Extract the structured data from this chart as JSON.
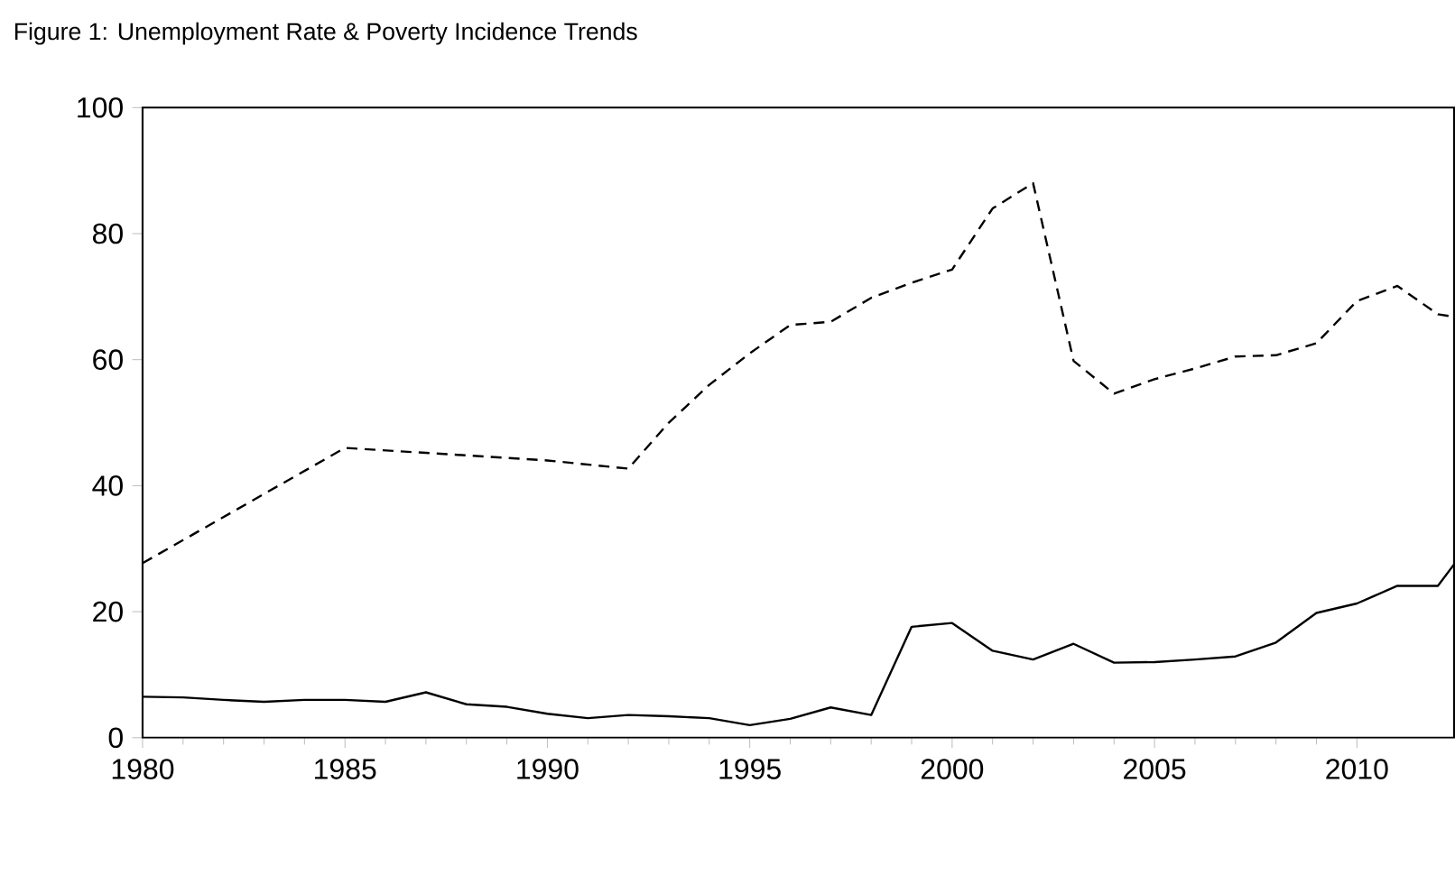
{
  "chart_data": {
    "type": "line",
    "title": "Figure 1: Unemployment Rate & Poverty Incidence Trends",
    "xlim": [
      1980,
      2012.4
    ],
    "ylim": [
      0,
      100
    ],
    "xticks": [
      1980,
      1985,
      1990,
      1995,
      2000,
      2005,
      2010
    ],
    "yticks": [
      0,
      20,
      40,
      60,
      80,
      100
    ],
    "series": [
      {
        "color": "#000000",
        "line_style": "solid",
        "x": [
          1980,
          1981,
          1982,
          1983,
          1984,
          1985,
          1986,
          1987,
          1988,
          1989,
          1990,
          1991,
          1992,
          1993,
          1994,
          1995,
          1996,
          1997,
          1998,
          1999,
          2000,
          2001,
          2002,
          2003,
          2004,
          2005,
          2006,
          2007,
          2008,
          2009,
          2010,
          2011,
          2012,
          2012.4
        ],
        "values": [
          6.5,
          6.4,
          6.0,
          5.7,
          6.0,
          6.0,
          5.7,
          7.2,
          5.3,
          4.9,
          3.8,
          3.1,
          3.6,
          3.4,
          3.1,
          2.0,
          3.0,
          4.8,
          3.6,
          17.6,
          18.2,
          13.8,
          12.4,
          14.9,
          11.9,
          12.0,
          12.4,
          12.9,
          15.1,
          19.8,
          21.3,
          24.1,
          24.1,
          27.5
        ]
      },
      {
        "color": "#000000",
        "line_style": "dashed",
        "x": [
          1980,
          1985,
          1987,
          1990,
          1992,
          1993,
          1994,
          1995,
          1996,
          1997,
          1998,
          1999,
          2000,
          2001,
          2002,
          2003,
          2004,
          2005,
          2006,
          2007,
          2008,
          2009,
          2010,
          2011,
          2012,
          2012.4
        ],
        "values": [
          27.7,
          46,
          45.2,
          44,
          42.7,
          50,
          56,
          61,
          65.5,
          66,
          69.8,
          72.2,
          74.3,
          84,
          88,
          59.8,
          54.6,
          56.9,
          58.6,
          60.5,
          60.7,
          62.6,
          69.3,
          71.7,
          67.2,
          66.8
        ]
      }
    ]
  }
}
